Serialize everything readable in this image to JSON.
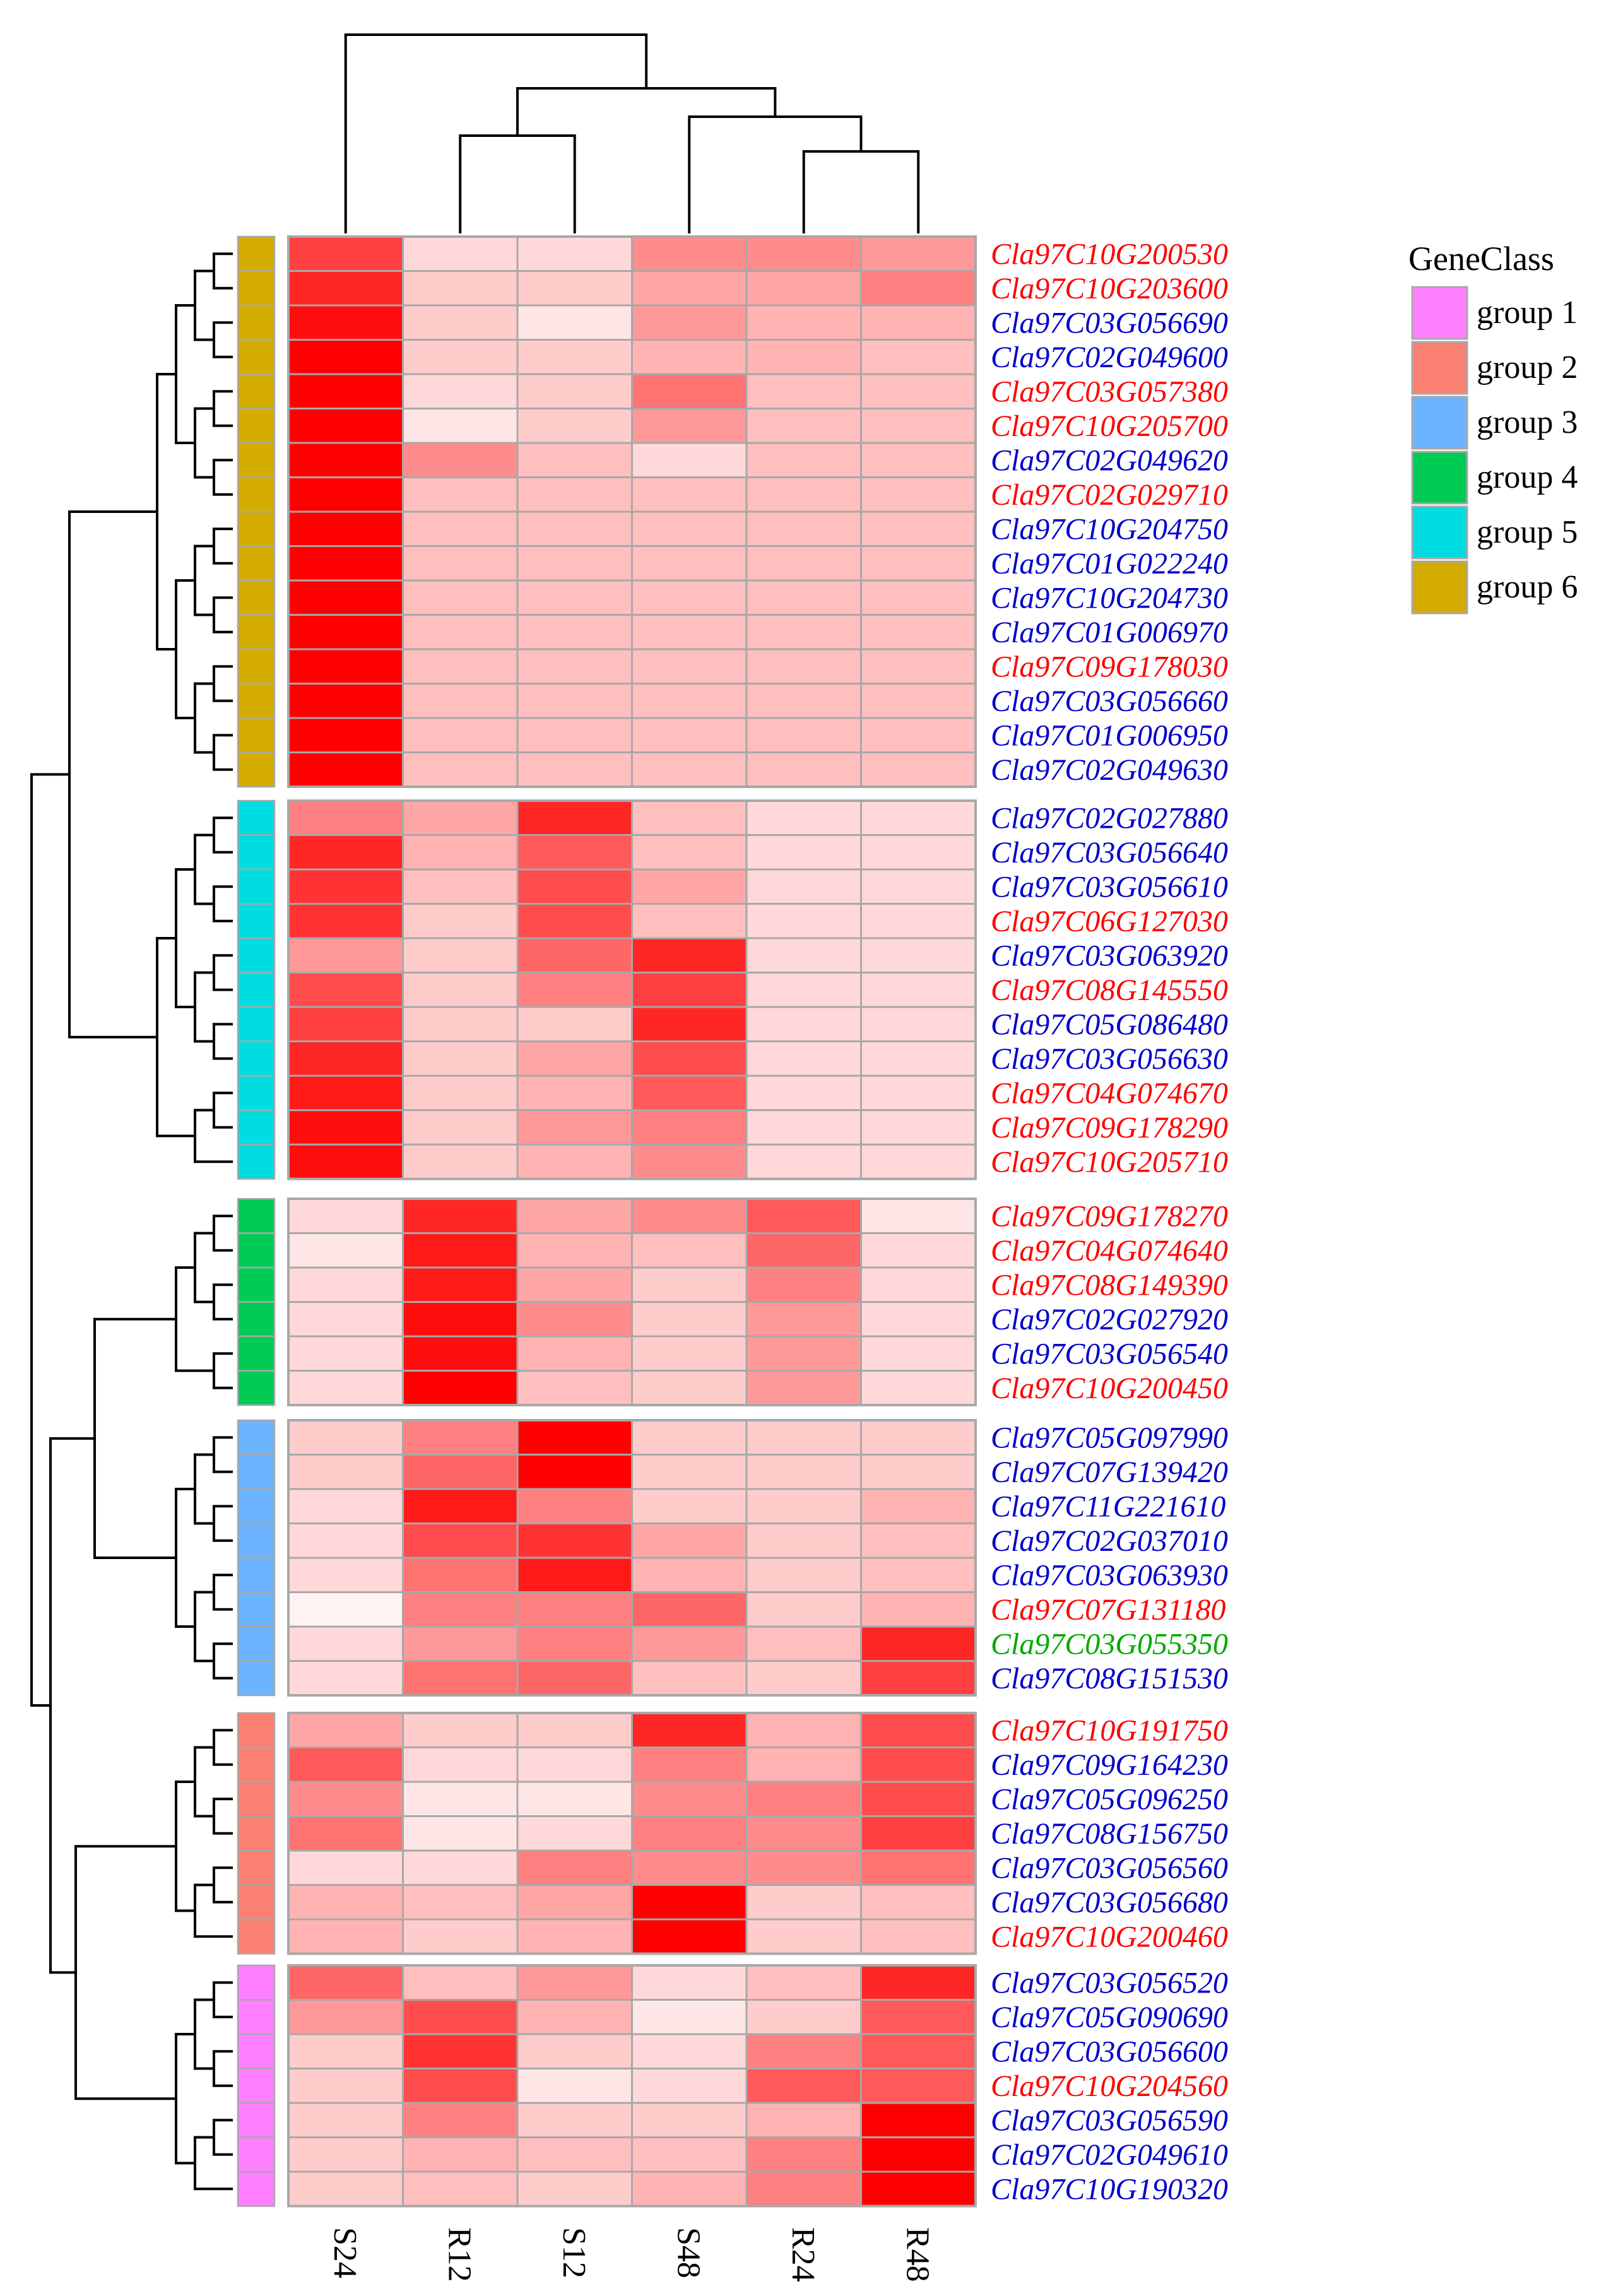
{
  "chart_data": {
    "type": "heatmap",
    "columns": [
      "S24",
      "R12",
      "S12",
      "S48",
      "R24",
      "R48"
    ],
    "value_scale": [
      0,
      1
    ],
    "low_color": "#ffffff",
    "high_color": "#ff0000",
    "legend": {
      "title": "GeneClass",
      "placement": "right",
      "items": [
        {
          "label": "group 1",
          "color": "#ff80ff"
        },
        {
          "label": "group 2",
          "color": "#fa8072"
        },
        {
          "label": "group 3",
          "color": "#6cb4ff"
        },
        {
          "label": "group 4",
          "color": "#00cc55"
        },
        {
          "label": "group 5",
          "color": "#00dde0"
        },
        {
          "label": "group 6",
          "color": "#d4ac00"
        }
      ]
    },
    "label_colors": {
      "red": "#ff0000",
      "blue": "#0000cc",
      "green": "#00aa00"
    },
    "blocks": [
      {
        "group": "group 6",
        "rows": [
          {
            "gene": "Cla97C10G200530",
            "label_color": "red",
            "values": [
              0.75,
              0.15,
              0.15,
              0.45,
              0.45,
              0.4
            ]
          },
          {
            "gene": "Cla97C10G203600",
            "label_color": "red",
            "values": [
              0.85,
              0.2,
              0.2,
              0.35,
              0.35,
              0.5
            ]
          },
          {
            "gene": "Cla97C03G056690",
            "label_color": "blue",
            "values": [
              0.95,
              0.2,
              0.1,
              0.4,
              0.3,
              0.3
            ]
          },
          {
            "gene": "Cla97C02G049600",
            "label_color": "blue",
            "values": [
              1.0,
              0.2,
              0.2,
              0.3,
              0.3,
              0.25
            ]
          },
          {
            "gene": "Cla97C03G057380",
            "label_color": "red",
            "values": [
              1.0,
              0.15,
              0.2,
              0.55,
              0.25,
              0.25
            ]
          },
          {
            "gene": "Cla97C10G205700",
            "label_color": "red",
            "values": [
              1.0,
              0.1,
              0.2,
              0.4,
              0.25,
              0.25
            ]
          },
          {
            "gene": "Cla97C02G049620",
            "label_color": "blue",
            "values": [
              1.0,
              0.45,
              0.25,
              0.15,
              0.25,
              0.25
            ]
          },
          {
            "gene": "Cla97C02G029710",
            "label_color": "red",
            "values": [
              1.0,
              0.25,
              0.25,
              0.25,
              0.25,
              0.25
            ]
          },
          {
            "gene": "Cla97C10G204750",
            "label_color": "blue",
            "values": [
              1.0,
              0.25,
              0.25,
              0.25,
              0.25,
              0.25
            ]
          },
          {
            "gene": "Cla97C01G022240",
            "label_color": "blue",
            "values": [
              1.0,
              0.25,
              0.25,
              0.25,
              0.25,
              0.25
            ]
          },
          {
            "gene": "Cla97C10G204730",
            "label_color": "blue",
            "values": [
              1.0,
              0.25,
              0.25,
              0.25,
              0.25,
              0.25
            ]
          },
          {
            "gene": "Cla97C01G006970",
            "label_color": "blue",
            "values": [
              1.0,
              0.25,
              0.25,
              0.25,
              0.25,
              0.25
            ]
          },
          {
            "gene": "Cla97C09G178030",
            "label_color": "red",
            "values": [
              1.0,
              0.25,
              0.25,
              0.25,
              0.25,
              0.25
            ]
          },
          {
            "gene": "Cla97C03G056660",
            "label_color": "blue",
            "values": [
              1.0,
              0.25,
              0.25,
              0.25,
              0.25,
              0.25
            ]
          },
          {
            "gene": "Cla97C01G006950",
            "label_color": "blue",
            "values": [
              1.0,
              0.25,
              0.25,
              0.25,
              0.25,
              0.25
            ]
          },
          {
            "gene": "Cla97C02G049630",
            "label_color": "blue",
            "values": [
              1.0,
              0.25,
              0.25,
              0.25,
              0.25,
              0.25
            ]
          }
        ]
      },
      {
        "group": "group 5",
        "rows": [
          {
            "gene": "Cla97C02G027880",
            "label_color": "blue",
            "values": [
              0.5,
              0.35,
              0.85,
              0.25,
              0.15,
              0.15
            ]
          },
          {
            "gene": "Cla97C03G056640",
            "label_color": "blue",
            "values": [
              0.85,
              0.3,
              0.65,
              0.25,
              0.15,
              0.15
            ]
          },
          {
            "gene": "Cla97C03G056610",
            "label_color": "blue",
            "values": [
              0.8,
              0.25,
              0.7,
              0.35,
              0.15,
              0.15
            ]
          },
          {
            "gene": "Cla97C06G127030",
            "label_color": "red",
            "values": [
              0.8,
              0.2,
              0.7,
              0.25,
              0.15,
              0.15
            ]
          },
          {
            "gene": "Cla97C03G063920",
            "label_color": "blue",
            "values": [
              0.4,
              0.2,
              0.6,
              0.85,
              0.15,
              0.15
            ]
          },
          {
            "gene": "Cla97C08G145550",
            "label_color": "red",
            "values": [
              0.7,
              0.2,
              0.5,
              0.75,
              0.15,
              0.15
            ]
          },
          {
            "gene": "Cla97C05G086480",
            "label_color": "blue",
            "values": [
              0.75,
              0.2,
              0.2,
              0.85,
              0.15,
              0.15
            ]
          },
          {
            "gene": "Cla97C03G056630",
            "label_color": "blue",
            "values": [
              0.85,
              0.2,
              0.35,
              0.7,
              0.15,
              0.15
            ]
          },
          {
            "gene": "Cla97C04G074670",
            "label_color": "red",
            "values": [
              0.9,
              0.2,
              0.3,
              0.65,
              0.15,
              0.15
            ]
          },
          {
            "gene": "Cla97C09G178290",
            "label_color": "red",
            "values": [
              0.95,
              0.2,
              0.4,
              0.5,
              0.15,
              0.15
            ]
          },
          {
            "gene": "Cla97C10G205710",
            "label_color": "red",
            "values": [
              0.95,
              0.2,
              0.3,
              0.45,
              0.15,
              0.15
            ]
          }
        ]
      },
      {
        "group": "group 4",
        "rows": [
          {
            "gene": "Cla97C09G178270",
            "label_color": "red",
            "values": [
              0.15,
              0.85,
              0.35,
              0.45,
              0.65,
              0.1
            ]
          },
          {
            "gene": "Cla97C04G074640",
            "label_color": "red",
            "values": [
              0.1,
              0.9,
              0.3,
              0.25,
              0.6,
              0.15
            ]
          },
          {
            "gene": "Cla97C08G149390",
            "label_color": "red",
            "values": [
              0.15,
              0.9,
              0.35,
              0.2,
              0.5,
              0.15
            ]
          },
          {
            "gene": "Cla97C02G027920",
            "label_color": "blue",
            "values": [
              0.15,
              0.95,
              0.45,
              0.2,
              0.4,
              0.15
            ]
          },
          {
            "gene": "Cla97C03G056540",
            "label_color": "blue",
            "values": [
              0.15,
              0.95,
              0.3,
              0.2,
              0.4,
              0.15
            ]
          },
          {
            "gene": "Cla97C10G200450",
            "label_color": "red",
            "values": [
              0.15,
              1.0,
              0.25,
              0.2,
              0.4,
              0.15
            ]
          }
        ]
      },
      {
        "group": "group 3",
        "rows": [
          {
            "gene": "Cla97C05G097990",
            "label_color": "blue",
            "values": [
              0.2,
              0.5,
              1.0,
              0.2,
              0.2,
              0.2
            ]
          },
          {
            "gene": "Cla97C07G139420",
            "label_color": "blue",
            "values": [
              0.2,
              0.6,
              1.0,
              0.2,
              0.2,
              0.2
            ]
          },
          {
            "gene": "Cla97C11G221610",
            "label_color": "blue",
            "values": [
              0.15,
              0.9,
              0.5,
              0.2,
              0.2,
              0.3
            ]
          },
          {
            "gene": "Cla97C02G037010",
            "label_color": "blue",
            "values": [
              0.15,
              0.7,
              0.8,
              0.35,
              0.2,
              0.25
            ]
          },
          {
            "gene": "Cla97C03G063930",
            "label_color": "blue",
            "values": [
              0.15,
              0.55,
              0.9,
              0.3,
              0.2,
              0.25
            ]
          },
          {
            "gene": "Cla97C07G131180",
            "label_color": "red",
            "values": [
              0.05,
              0.5,
              0.5,
              0.6,
              0.2,
              0.3
            ]
          },
          {
            "gene": "Cla97C03G055350",
            "label_color": "green",
            "values": [
              0.15,
              0.4,
              0.5,
              0.4,
              0.25,
              0.85
            ]
          },
          {
            "gene": "Cla97C08G151530",
            "label_color": "blue",
            "values": [
              0.15,
              0.55,
              0.6,
              0.25,
              0.2,
              0.75
            ]
          }
        ]
      },
      {
        "group": "group 2",
        "rows": [
          {
            "gene": "Cla97C10G191750",
            "label_color": "red",
            "values": [
              0.35,
              0.2,
              0.2,
              0.85,
              0.3,
              0.7
            ]
          },
          {
            "gene": "Cla97C09G164230",
            "label_color": "blue",
            "values": [
              0.65,
              0.15,
              0.15,
              0.5,
              0.3,
              0.7
            ]
          },
          {
            "gene": "Cla97C05G096250",
            "label_color": "blue",
            "values": [
              0.45,
              0.1,
              0.1,
              0.45,
              0.5,
              0.7
            ]
          },
          {
            "gene": "Cla97C08G156750",
            "label_color": "blue",
            "values": [
              0.55,
              0.1,
              0.15,
              0.5,
              0.45,
              0.75
            ]
          },
          {
            "gene": "Cla97C03G056560",
            "label_color": "blue",
            "values": [
              0.15,
              0.15,
              0.5,
              0.45,
              0.45,
              0.55
            ]
          },
          {
            "gene": "Cla97C03G056680",
            "label_color": "blue",
            "values": [
              0.3,
              0.25,
              0.35,
              1.0,
              0.2,
              0.25
            ]
          },
          {
            "gene": "Cla97C10G200460",
            "label_color": "red",
            "values": [
              0.3,
              0.2,
              0.3,
              1.0,
              0.2,
              0.25
            ]
          }
        ]
      },
      {
        "group": "group 1",
        "rows": [
          {
            "gene": "Cla97C03G056520",
            "label_color": "blue",
            "values": [
              0.6,
              0.25,
              0.4,
              0.15,
              0.25,
              0.85
            ]
          },
          {
            "gene": "Cla97C05G090690",
            "label_color": "blue",
            "values": [
              0.4,
              0.7,
              0.3,
              0.1,
              0.2,
              0.65
            ]
          },
          {
            "gene": "Cla97C03G056600",
            "label_color": "blue",
            "values": [
              0.2,
              0.8,
              0.2,
              0.15,
              0.5,
              0.65
            ]
          },
          {
            "gene": "Cla97C10G204560",
            "label_color": "red",
            "values": [
              0.2,
              0.7,
              0.1,
              0.15,
              0.65,
              0.65
            ]
          },
          {
            "gene": "Cla97C03G056590",
            "label_color": "blue",
            "values": [
              0.2,
              0.5,
              0.2,
              0.2,
              0.3,
              1.0
            ]
          },
          {
            "gene": "Cla97C02G049610",
            "label_color": "blue",
            "values": [
              0.2,
              0.3,
              0.25,
              0.25,
              0.5,
              1.0
            ]
          },
          {
            "gene": "Cla97C10G190320",
            "label_color": "blue",
            "values": [
              0.2,
              0.25,
              0.2,
              0.3,
              0.5,
              1.0
            ]
          }
        ]
      }
    ]
  }
}
